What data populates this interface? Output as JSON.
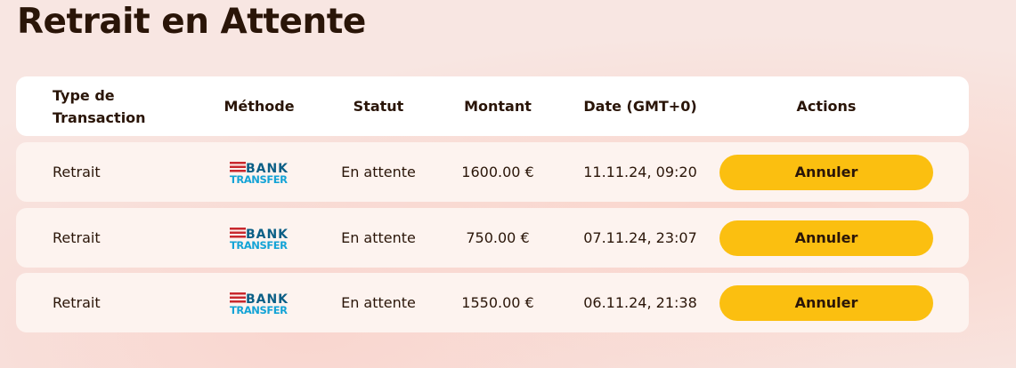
{
  "title": "Retrait en Attente",
  "columns": [
    "Type de Transaction",
    "Méthode",
    "Statut",
    "Montant",
    "Date (GMT+0)",
    "Actions"
  ],
  "colors": {
    "button": "#fbbf10",
    "logo_bars": "#c8282e",
    "logo_bank": "#0b5f86",
    "logo_transfer": "#13a3d6"
  },
  "rows": [
    {
      "type": "Retrait",
      "method": "BANK TRANSFER",
      "method_icon": "bank-transfer-logo",
      "status": "En attente",
      "amount": "1600.00 €",
      "date": "11.11.24, 09:20",
      "action": "Annuler"
    },
    {
      "type": "Retrait",
      "method": "BANK TRANSFER",
      "method_icon": "bank-transfer-logo",
      "status": "En attente",
      "amount": "750.00 €",
      "date": "07.11.24, 23:07",
      "action": "Annuler"
    },
    {
      "type": "Retrait",
      "method": "BANK TRANSFER",
      "method_icon": "bank-transfer-logo",
      "status": "En attente",
      "amount": "1550.00 €",
      "date": "06.11.24, 21:38",
      "action": "Annuler"
    }
  ]
}
